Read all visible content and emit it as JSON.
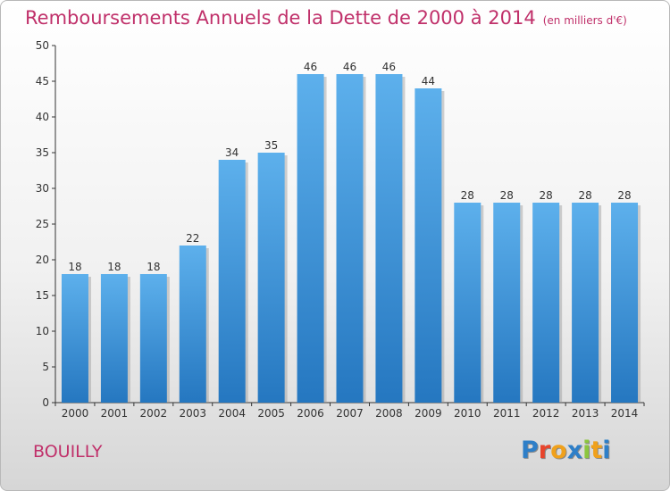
{
  "title": "Remboursements Annuels de la Dette de 2000 à 2014",
  "unit_note": "(en milliers d'€)",
  "location": "BOUILLY",
  "logo": {
    "text": "Proxiti",
    "letters": [
      {
        "ch": "P",
        "color": "#2e7fc8"
      },
      {
        "ch": "r",
        "color": "#e8452c"
      },
      {
        "ch": "o",
        "color": "#f0a11c"
      },
      {
        "ch": "x",
        "color": "#2e7fc8"
      },
      {
        "ch": "i",
        "color": "#8cc63e"
      },
      {
        "ch": "t",
        "color": "#f0a11c"
      },
      {
        "ch": "i",
        "color": "#2e7fc8"
      }
    ]
  },
  "colors": {
    "bar_top": "#5db0ec",
    "bar_bottom": "#2577c0",
    "text_accent": "#c0306a",
    "axis": "#333333"
  },
  "chart_data": {
    "type": "bar",
    "categories": [
      "2000",
      "2001",
      "2002",
      "2003",
      "2004",
      "2005",
      "2006",
      "2007",
      "2008",
      "2009",
      "2010",
      "2011",
      "2012",
      "2013",
      "2014"
    ],
    "values": [
      18,
      18,
      18,
      22,
      34,
      35,
      46,
      46,
      46,
      44,
      28,
      28,
      28,
      28,
      28
    ],
    "title": "Remboursements Annuels de la Dette de 2000 à 2014",
    "ylim": [
      0,
      50
    ],
    "yticks": [
      0,
      5,
      10,
      15,
      20,
      25,
      30,
      35,
      40,
      45,
      50
    ],
    "grid": false,
    "data_labels": true
  }
}
